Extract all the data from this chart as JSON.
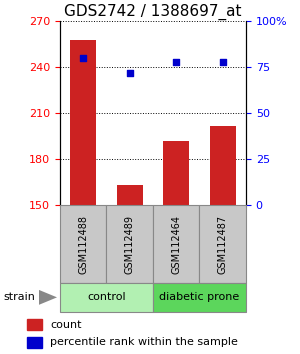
{
  "title": "GDS2742 / 1388697_at",
  "samples": [
    "GSM112488",
    "GSM112489",
    "GSM112464",
    "GSM112487"
  ],
  "counts": [
    258,
    163,
    192,
    202
  ],
  "percentiles": [
    80,
    72,
    78,
    78
  ],
  "ylim_left": [
    150,
    270
  ],
  "ylim_right": [
    0,
    100
  ],
  "yticks_left": [
    150,
    180,
    210,
    240,
    270
  ],
  "yticks_right": [
    0,
    25,
    50,
    75,
    100
  ],
  "ytick_labels_right": [
    "0",
    "25",
    "50",
    "75",
    "100%"
  ],
  "groups": [
    {
      "label": "control",
      "indices": [
        0,
        1
      ],
      "color": "#b2f0b2"
    },
    {
      "label": "diabetic prone",
      "indices": [
        2,
        3
      ],
      "color": "#5cd65c"
    }
  ],
  "bar_color": "#cc2222",
  "dot_color": "#0000cc",
  "bar_width": 0.55,
  "bg_color": "#ffffff",
  "sample_box_color": "#c8c8c8",
  "strain_label": "strain",
  "legend_count": "count",
  "legend_percentile": "percentile rank within the sample",
  "title_fontsize": 11,
  "tick_fontsize": 8,
  "sample_fontsize": 7,
  "group_fontsize": 8,
  "legend_fontsize": 8
}
